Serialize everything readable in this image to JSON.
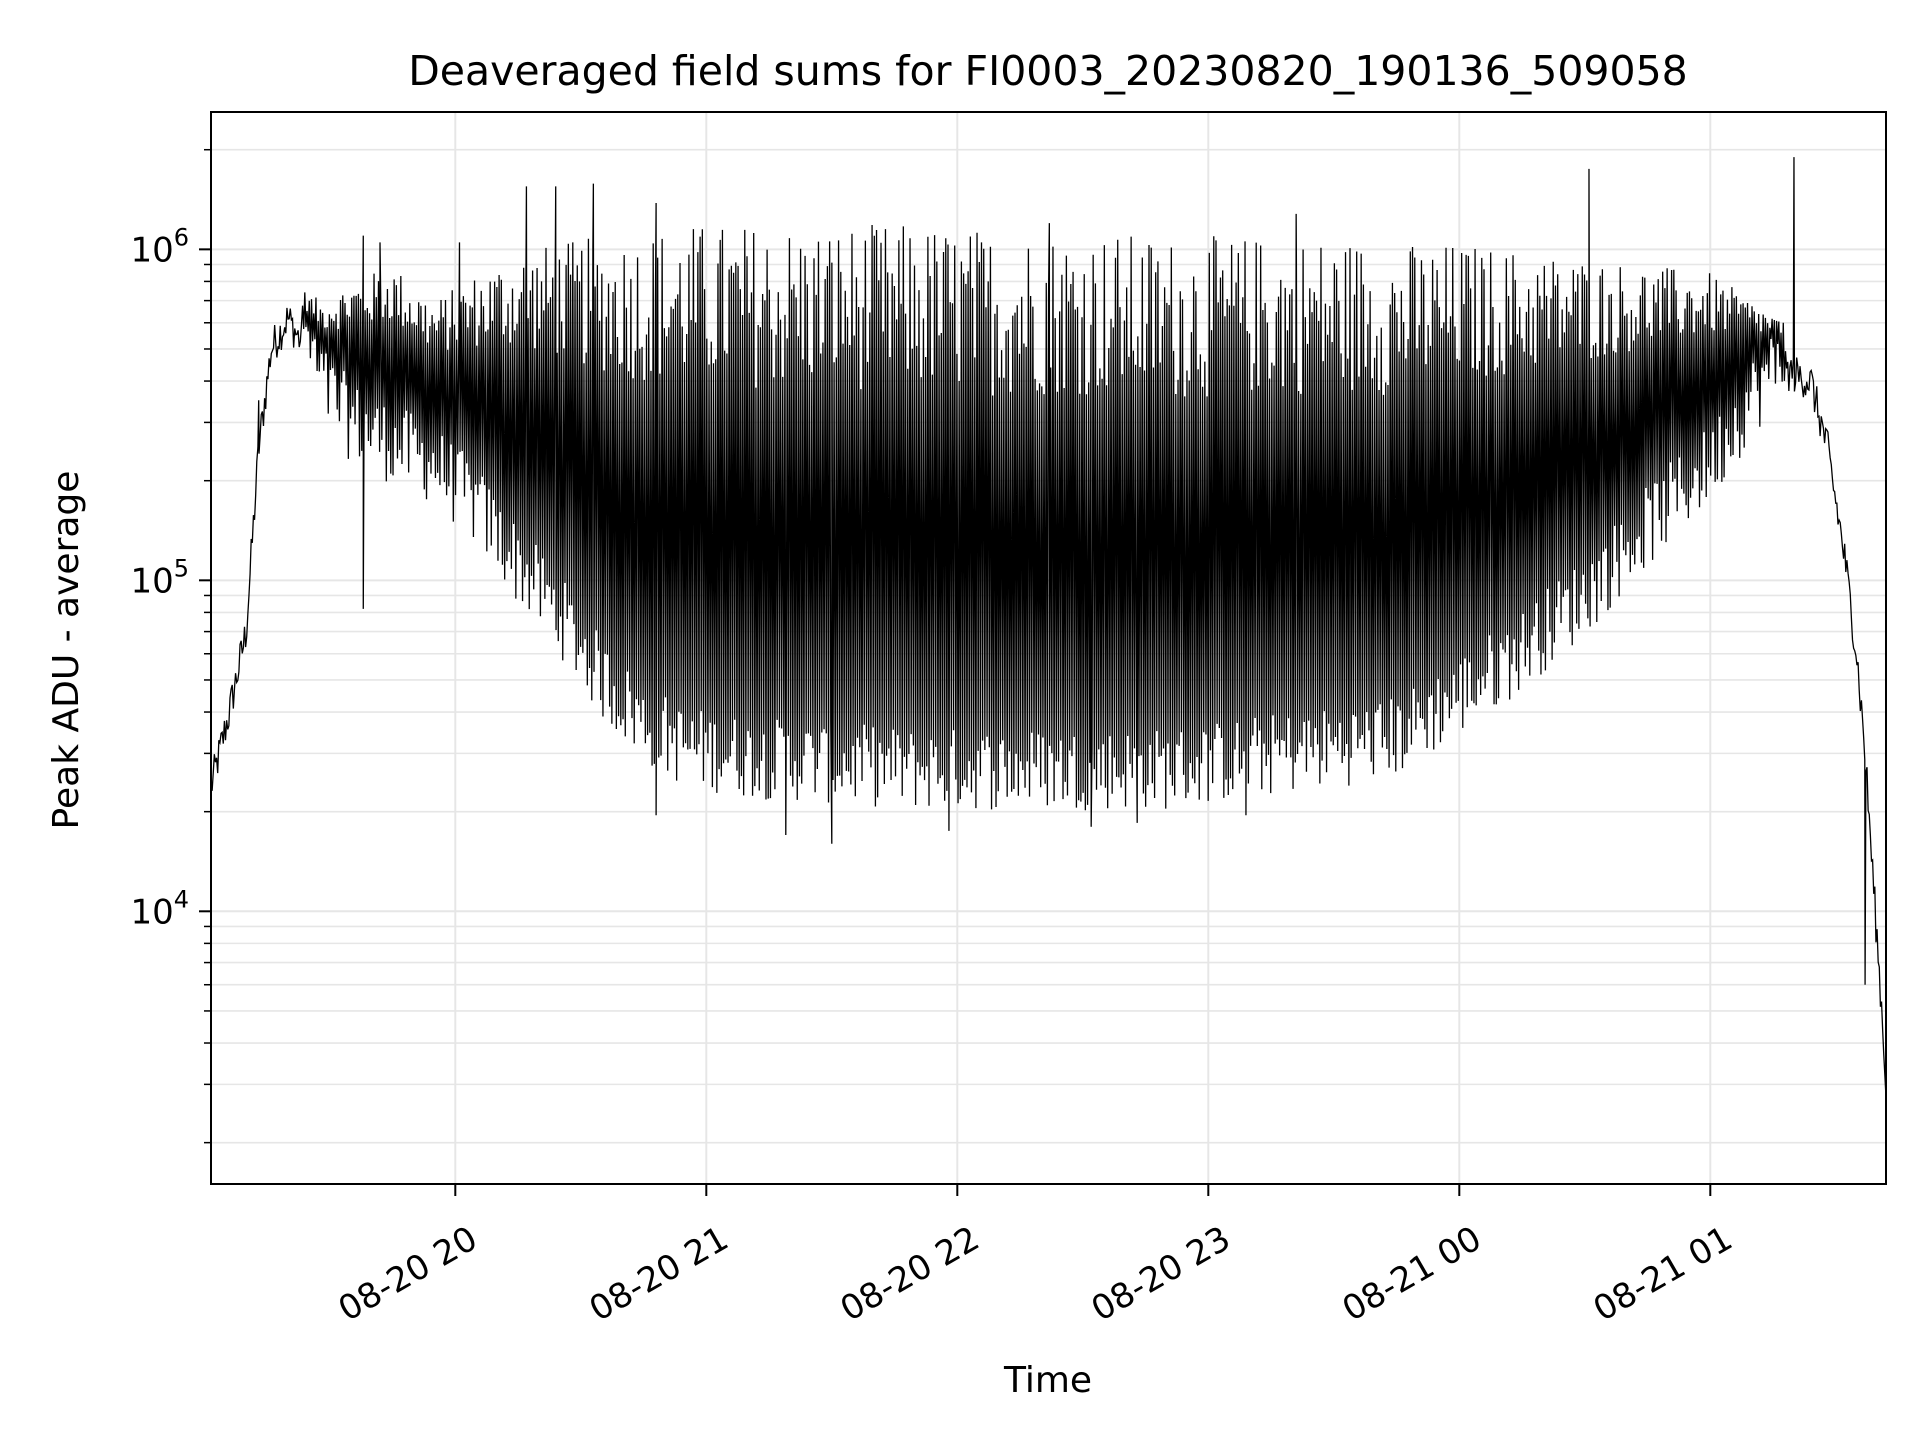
{
  "chart_data": {
    "type": "line",
    "title": "Deaveraged field sums for FI0003_20230820_190136_509058",
    "xlabel": "Time",
    "ylabel": "Peak ADU - average",
    "yscale": "log",
    "ylim": [
      1500,
      2600000
    ],
    "xlim": [
      "08-20 19:01:36",
      "08-21 01:42:00"
    ],
    "grid": true,
    "line_color": "#000000",
    "grid_color": "#e6e6e6",
    "x_ticks": [
      {
        "label": "08-20 20",
        "hours_after_1900": 1.0
      },
      {
        "label": "08-20 21",
        "hours_after_1900": 2.0
      },
      {
        "label": "08-20 22",
        "hours_after_1900": 3.0
      },
      {
        "label": "08-20 23",
        "hours_after_1900": 4.0
      },
      {
        "label": "08-21 00",
        "hours_after_1900": 5.0
      },
      {
        "label": "08-21 01",
        "hours_after_1900": 6.0
      }
    ],
    "y_ticks": [
      {
        "base": "10",
        "exp": "4",
        "value": 10000
      },
      {
        "base": "10",
        "exp": "5",
        "value": 100000
      },
      {
        "base": "10",
        "exp": "6",
        "value": 1000000
      }
    ],
    "series": [
      {
        "x_time": [
          "08-20 19:01",
          "08-20 19:06",
          "08-20 19:10",
          "08-20 19:13",
          "08-20 19:16",
          "08-20 19:20",
          "08-20 19:24",
          "08-20 19:28",
          "08-20 19:35",
          "08-20 19:45",
          "08-20 19:55",
          "08-20 20:05",
          "08-20 20:15",
          "08-20 20:25",
          "08-20 20:35",
          "08-20 20:45",
          "08-20 20:55",
          "08-20 21:10",
          "08-20 21:30",
          "08-20 21:50",
          "08-20 22:10",
          "08-20 22:30",
          "08-20 22:50",
          "08-20 23:10",
          "08-20 23:30",
          "08-20 23:45",
          "08-21 00:00",
          "08-21 00:15",
          "08-21 00:30",
          "08-21 00:45",
          "08-21 01:00",
          "08-21 01:10",
          "08-21 01:18",
          "08-21 01:24",
          "08-21 01:28",
          "08-21 01:32",
          "08-21 01:35",
          "08-21 01:37",
          "08-21 01:39",
          "08-21 01:41",
          "08-21 01:42"
        ],
        "baseline": [
          22000,
          40000,
          70000,
          250000,
          500000,
          620000,
          500000,
          350000,
          270000,
          230000,
          200000,
          150000,
          100000,
          70000,
          45000,
          33000,
          28000,
          26000,
          25000,
          24000,
          24000,
          24000,
          24000,
          26000,
          28000,
          30000,
          40000,
          55000,
          80000,
          130000,
          200000,
          320000,
          430000,
          400000,
          250000,
          120000,
          60000,
          30000,
          12000,
          5000,
          3000
        ],
        "upper": [
          22000,
          40000,
          75000,
          300000,
          600000,
          650000,
          750000,
          700000,
          800000,
          900000,
          700000,
          850000,
          1000000,
          1050000,
          1100000,
          1150000,
          1200000,
          1200000,
          1200000,
          1200000,
          1150000,
          1150000,
          1100000,
          1100000,
          1100000,
          1050000,
          1050000,
          1000000,
          950000,
          900000,
          850000,
          700000,
          600000,
          450000,
          250000,
          130000,
          60000,
          30000,
          12000,
          5000,
          3000
        ],
        "spikes": [
          {
            "time": "08-20 19:13",
            "value": 350000
          },
          {
            "time": "08-20 19:38",
            "value": 1100000
          },
          {
            "time": "08-20 19:42",
            "value": 1050000
          },
          {
            "time": "08-20 20:01",
            "value": 1050000
          },
          {
            "time": "08-20 20:17",
            "value": 1550000
          },
          {
            "time": "08-20 20:24",
            "value": 1550000
          },
          {
            "time": "08-20 20:33",
            "value": 1580000
          },
          {
            "time": "08-20 20:48",
            "value": 1380000
          },
          {
            "time": "08-20 22:22",
            "value": 1200000
          },
          {
            "time": "08-20 23:21",
            "value": 1280000
          },
          {
            "time": "08-21 00:31",
            "value": 1750000
          },
          {
            "time": "08-21 01:20",
            "value": 1900000
          }
        ],
        "dips": [
          {
            "time": "08-20 19:38",
            "value": 82000
          },
          {
            "time": "08-20 20:48",
            "value": 19500
          },
          {
            "time": "08-20 21:19",
            "value": 17000
          },
          {
            "time": "08-20 21:30",
            "value": 16000
          },
          {
            "time": "08-20 21:58",
            "value": 17500
          },
          {
            "time": "08-20 22:32",
            "value": 18000
          },
          {
            "time": "08-20 22:43",
            "value": 18500
          },
          {
            "time": "08-20 23:09",
            "value": 19500
          },
          {
            "time": "08-21 01:37",
            "value": 6000
          }
        ]
      }
    ]
  }
}
